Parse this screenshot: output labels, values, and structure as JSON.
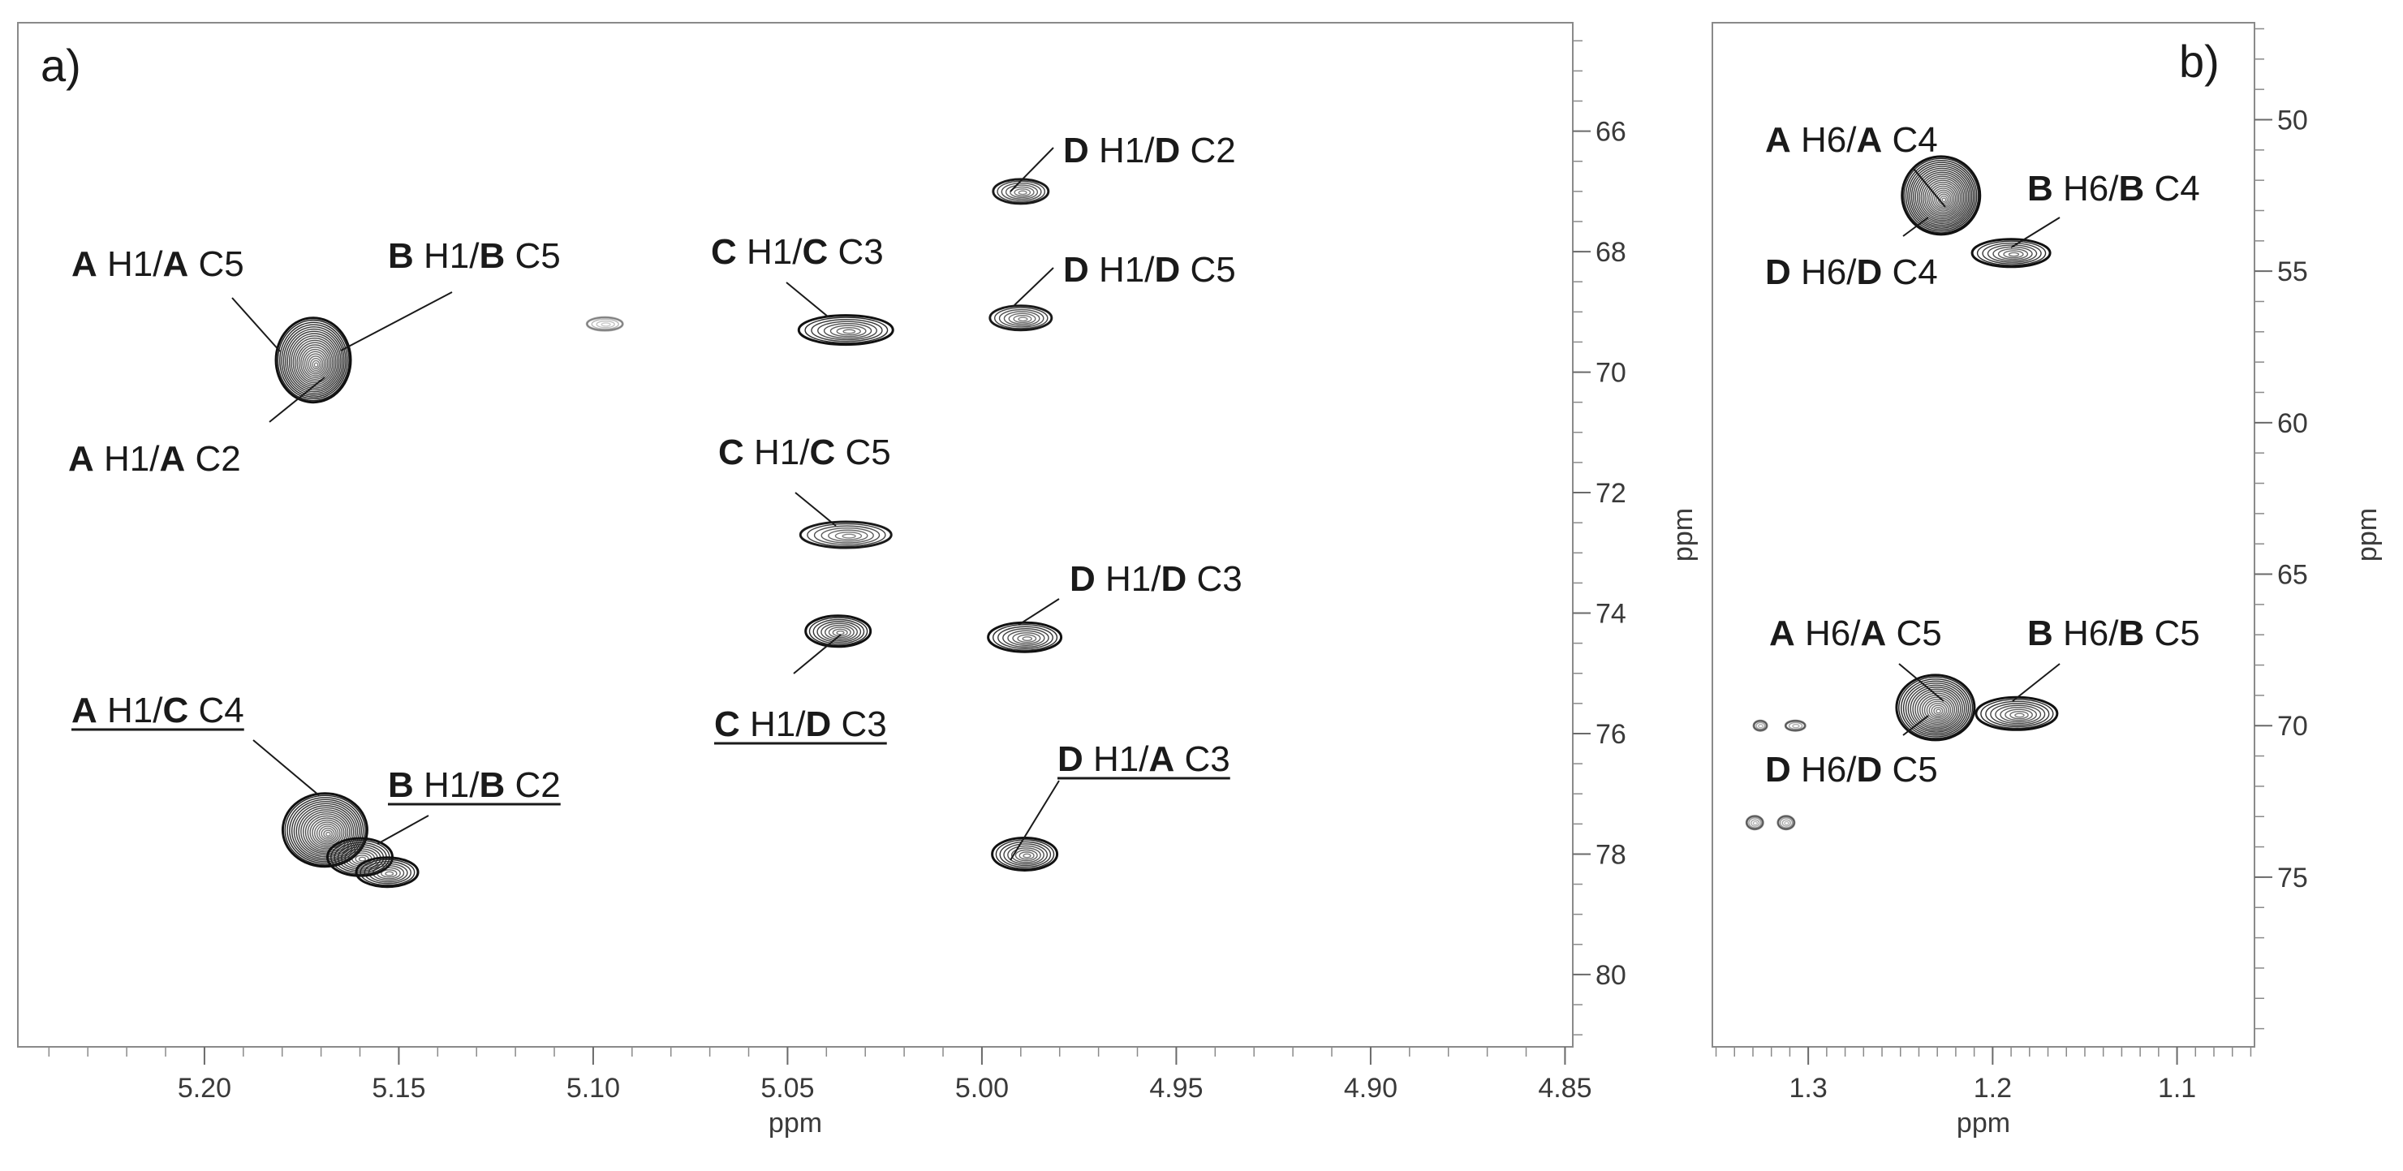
{
  "chart_data": [
    {
      "type": "scatter",
      "panel_label": "a)",
      "xlabel": "ppm",
      "ylabel": "ppm",
      "xlim": [
        5.248,
        4.848
      ],
      "ylim": [
        64.2,
        81.2
      ],
      "x_ticks": [
        "5.20",
        "5.15",
        "5.10",
        "5.05",
        "5.00",
        "4.95",
        "4.90",
        "4.85"
      ],
      "y_ticks": [
        "66",
        "68",
        "70",
        "72",
        "74",
        "76",
        "78",
        "80"
      ],
      "grid": false,
      "peaks": [
        {
          "x": 5.172,
          "y": 69.8
        },
        {
          "x": 5.097,
          "y": 69.2
        },
        {
          "x": 5.035,
          "y": 69.3
        },
        {
          "x": 4.99,
          "y": 67.0
        },
        {
          "x": 4.99,
          "y": 69.1
        },
        {
          "x": 5.035,
          "y": 72.7
        },
        {
          "x": 5.037,
          "y": 74.3
        },
        {
          "x": 4.989,
          "y": 74.4
        },
        {
          "x": 5.169,
          "y": 77.6
        },
        {
          "x": 5.153,
          "y": 78.3
        },
        {
          "x": 4.989,
          "y": 78.0
        }
      ],
      "annotations": [
        {
          "parts": [
            [
              "A",
              true
            ],
            [
              " H1/",
              false
            ],
            [
              "A",
              true
            ],
            [
              " C5",
              false
            ]
          ],
          "underline": false
        },
        {
          "parts": [
            [
              "B",
              true
            ],
            [
              " H1/",
              false
            ],
            [
              "B",
              true
            ],
            [
              " C5",
              false
            ]
          ],
          "underline": false
        },
        {
          "parts": [
            [
              "A",
              true
            ],
            [
              " H1/",
              false
            ],
            [
              "A",
              true
            ],
            [
              " C2",
              false
            ]
          ],
          "underline": false
        },
        {
          "parts": [
            [
              "C",
              true
            ],
            [
              " H1/",
              false
            ],
            [
              "C",
              true
            ],
            [
              " C3",
              false
            ]
          ],
          "underline": false
        },
        {
          "parts": [
            [
              "D",
              true
            ],
            [
              " H1/",
              false
            ],
            [
              "D",
              true
            ],
            [
              " C2",
              false
            ]
          ],
          "underline": false
        },
        {
          "parts": [
            [
              "D",
              true
            ],
            [
              " H1/",
              false
            ],
            [
              "D",
              true
            ],
            [
              " C5",
              false
            ]
          ],
          "underline": false
        },
        {
          "parts": [
            [
              "C",
              true
            ],
            [
              " H1/",
              false
            ],
            [
              "C",
              true
            ],
            [
              " C5",
              false
            ]
          ],
          "underline": false
        },
        {
          "parts": [
            [
              "D",
              true
            ],
            [
              " H1/",
              false
            ],
            [
              "D",
              true
            ],
            [
              " C3",
              false
            ]
          ],
          "underline": false
        },
        {
          "parts": [
            [
              "C",
              true
            ],
            [
              " H1/",
              false
            ],
            [
              "D",
              true
            ],
            [
              " C3",
              false
            ]
          ],
          "underline": true
        },
        {
          "parts": [
            [
              "A",
              true
            ],
            [
              " H1/",
              false
            ],
            [
              "C",
              true
            ],
            [
              " C4",
              false
            ]
          ],
          "underline": true
        },
        {
          "parts": [
            [
              "B",
              true
            ],
            [
              " H1/",
              false
            ],
            [
              "B",
              true
            ],
            [
              " C2",
              false
            ]
          ],
          "underline": true
        },
        {
          "parts": [
            [
              "D",
              true
            ],
            [
              " H1/",
              false
            ],
            [
              "A",
              true
            ],
            [
              " C3",
              false
            ]
          ],
          "underline": true
        }
      ]
    },
    {
      "type": "scatter",
      "panel_label": "b)",
      "xlabel": "ppm",
      "ylabel": "ppm",
      "xlim": [
        1.352,
        1.058
      ],
      "ylim": [
        46.8,
        80.6
      ],
      "x_ticks": [
        "1.3",
        "1.2",
        "1.1"
      ],
      "y_ticks": [
        "50",
        "55",
        "60",
        "65",
        "70",
        "75"
      ],
      "grid": false,
      "peaks": [
        {
          "x": 1.228,
          "y": 52.5
        },
        {
          "x": 1.19,
          "y": 54.4
        },
        {
          "x": 1.231,
          "y": 69.4
        },
        {
          "x": 1.187,
          "y": 69.6
        },
        {
          "x": 1.326,
          "y": 70.0
        },
        {
          "x": 1.307,
          "y": 70.0
        },
        {
          "x": 1.329,
          "y": 73.2
        },
        {
          "x": 1.312,
          "y": 73.2
        }
      ],
      "annotations": [
        {
          "parts": [
            [
              "A",
              true
            ],
            [
              " H6/",
              false
            ],
            [
              "A",
              true
            ],
            [
              " C4",
              false
            ]
          ],
          "underline": false
        },
        {
          "parts": [
            [
              "B",
              true
            ],
            [
              " H6/",
              false
            ],
            [
              "B",
              true
            ],
            [
              " C4",
              false
            ]
          ],
          "underline": false
        },
        {
          "parts": [
            [
              "D",
              true
            ],
            [
              " H6/",
              false
            ],
            [
              "D",
              true
            ],
            [
              " C4",
              false
            ]
          ],
          "underline": false
        },
        {
          "parts": [
            [
              "A",
              true
            ],
            [
              " H6/",
              false
            ],
            [
              "A",
              true
            ],
            [
              " C5",
              false
            ]
          ],
          "underline": false
        },
        {
          "parts": [
            [
              "B",
              true
            ],
            [
              " H6/",
              false
            ],
            [
              "B",
              true
            ],
            [
              " C5",
              false
            ]
          ],
          "underline": false
        },
        {
          "parts": [
            [
              "D",
              true
            ],
            [
              " H6/",
              false
            ],
            [
              "D",
              true
            ],
            [
              " C5",
              false
            ]
          ],
          "underline": false
        }
      ]
    }
  ]
}
